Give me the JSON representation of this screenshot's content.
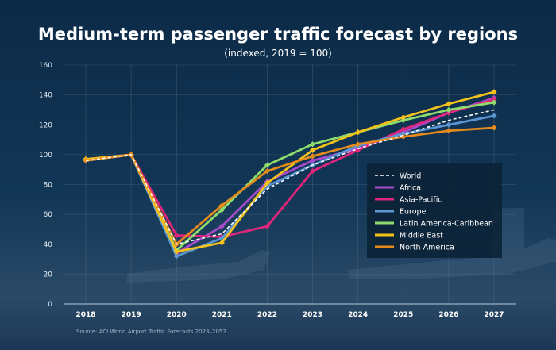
{
  "chart_data": {
    "type": "line",
    "title": "Medium-term passenger traffic forecast by regions",
    "subtitle": "(indexed, 2019 = 100)",
    "source": "Source: ACI World Airport Traffic Forecasts 2023–2052",
    "x": [
      "2018",
      "2019",
      "2020",
      "2021",
      "2022",
      "2023",
      "2024",
      "2025",
      "2026",
      "2027"
    ],
    "ylim": [
      0,
      160
    ],
    "yticks": [
      0,
      20,
      40,
      60,
      80,
      100,
      120,
      140,
      160
    ],
    "grid": true,
    "legend_position": "right",
    "series": [
      {
        "name": "World",
        "color": "#ffffff",
        "dashed": true,
        "marker": false,
        "values": [
          96,
          100,
          40,
          47,
          77,
          93,
          104,
          113,
          123,
          130
        ]
      },
      {
        "name": "Africa",
        "color": "#a64bc9",
        "dashed": false,
        "marker": true,
        "values": [
          96,
          100,
          34,
          52,
          82,
          96,
          104,
          115,
          128,
          138
        ]
      },
      {
        "name": "Asia-Pacific",
        "color": "#e0257c",
        "dashed": false,
        "marker": true,
        "values": [
          96,
          100,
          46,
          45,
          52,
          89,
          103,
          117,
          128,
          137
        ]
      },
      {
        "name": "Europe",
        "color": "#5b95d3",
        "dashed": false,
        "marker": true,
        "values": [
          96,
          100,
          32,
          44,
          79,
          93,
          106,
          114,
          120,
          126
        ]
      },
      {
        "name": "Latin America-Caribbean",
        "color": "#8fdc6e",
        "dashed": false,
        "marker": true,
        "values": [
          96,
          100,
          36,
          63,
          93,
          107,
          115,
          123,
          130,
          135
        ]
      },
      {
        "name": "Middle East",
        "color": "#f5c21b",
        "dashed": false,
        "marker": true,
        "values": [
          97,
          100,
          35,
          41,
          81,
          103,
          115,
          125,
          134,
          142
        ]
      },
      {
        "name": "North America",
        "color": "#e58a1c",
        "dashed": false,
        "marker": true,
        "values": [
          96,
          100,
          40,
          66,
          89,
          99,
          107,
          112,
          116,
          118
        ]
      }
    ]
  }
}
